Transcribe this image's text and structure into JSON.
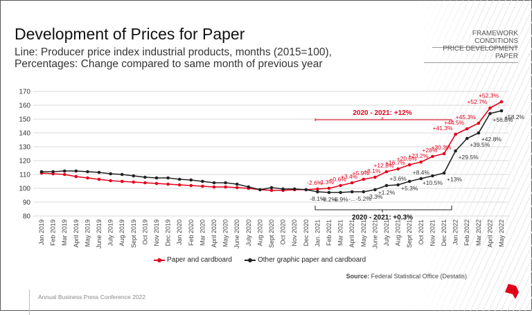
{
  "header": {
    "title": "Development of Prices for Paper",
    "subtitle_line1": "Line: Producer price index industrial products, months (2015=100),",
    "subtitle_line2": "Percentages: Change compared to same month of previous year",
    "nav_1": "FRAMEWORK CONDITIONS",
    "nav_2": "PRICE DEVELOPMENT PAPER"
  },
  "footer": {
    "source_label": "Source:",
    "source_text": " Federal Statistical Office (Destatis)",
    "event": "Annual Business Press Conference  2022"
  },
  "colors": {
    "paper": "#e3001b",
    "other": "#222222",
    "grid": "#d9d9d9"
  },
  "chart_data": {
    "type": "line",
    "title": "Development of Prices for Paper",
    "ylim": [
      80,
      170
    ],
    "yticks": [
      80,
      90,
      100,
      110,
      120,
      130,
      140,
      150,
      160,
      170
    ],
    "grid": true,
    "legend_position": "bottom",
    "categories": [
      "Jan 2019",
      "Feb 2019",
      "Mar 2019",
      "April 2019",
      "May 2019",
      "June 2019",
      "July 2019",
      "Aug 2019",
      "Sept 2019",
      "Oct 2019",
      "Nov 2019",
      "Dec 2019",
      "Jan 2020",
      "Feb 2020",
      "Mar 2020",
      "April 2020",
      "May 2020",
      "June 2020",
      "July 2020",
      "Aug 2020",
      "Sept 2020",
      "Oct 2020",
      "Nov 2020",
      "Dec 2020",
      "Jan. 2021",
      "Feb 2021",
      "Mar 2021",
      "April 2021",
      "May 2021",
      "June 2021",
      "July 2021",
      "Aug 2021",
      "Sept 2021",
      "Oct 2021",
      "Nov 2021",
      "Dec 2021",
      "Jan 2022",
      "Feb 2022",
      "Mar 2022",
      "April 2022",
      "May 2022"
    ],
    "series": [
      {
        "name": "Paper and cardboard",
        "color": "#e3001b",
        "values": [
          111,
          110.5,
          110,
          108.5,
          107.5,
          106.5,
          105.5,
          105,
          104.5,
          104,
          103.5,
          103,
          102.5,
          102,
          101.5,
          101,
          101,
          100.5,
          100,
          99,
          98.5,
          98.5,
          99,
          99,
          99.5,
          100,
          102,
          104,
          106.5,
          108,
          112,
          114,
          117,
          119,
          123,
          125,
          139,
          143,
          147,
          158,
          162.5
        ],
        "labels": [
          null,
          null,
          null,
          null,
          null,
          null,
          null,
          null,
          null,
          null,
          null,
          null,
          null,
          null,
          null,
          null,
          null,
          null,
          null,
          null,
          null,
          null,
          null,
          null,
          "-2.6%",
          "-1.3%",
          "+0.6%",
          "+3.4%",
          "+5.9%",
          "+8.1%",
          "+12.8%",
          "+16.7%",
          "+20.6%",
          "+23.2%",
          "+28%",
          "+30.3%",
          "+41.3%",
          "+44.5%",
          "+45.3%",
          "+52.7%",
          "+52.3%"
        ]
      },
      {
        "name": "Other graphic paper and cardboard",
        "color": "#222222",
        "values": [
          112,
          112,
          112.5,
          112.5,
          112,
          111.5,
          110.5,
          110,
          109,
          108,
          107.5,
          107.5,
          106.5,
          106,
          105,
          104,
          104,
          103,
          101,
          99,
          100.5,
          99.5,
          99.5,
          99,
          97.5,
          97,
          97,
          97.5,
          97.5,
          99,
          102,
          102.5,
          105,
          107,
          109,
          111,
          127,
          136,
          140,
          154,
          156
        ],
        "labels": [
          null,
          null,
          null,
          null,
          null,
          null,
          null,
          null,
          null,
          null,
          null,
          null,
          null,
          null,
          null,
          null,
          null,
          null,
          null,
          null,
          null,
          null,
          null,
          null,
          "-8.1%",
          "-8.2%",
          "-6.9%",
          "-...",
          "-5.2%",
          "-3.3%",
          "+1.2%",
          "+3.6%",
          "+5.3%",
          "+8.4%",
          "+10.5%",
          "+13%",
          "+29.5%",
          "+39.5%",
          "+42.8%",
          "+56.8%",
          "+58.2%"
        ]
      }
    ],
    "annotations": {
      "paper_period": "2020 - 2021: +12%",
      "other_period": "2020 - 2021: +0.3%"
    }
  }
}
